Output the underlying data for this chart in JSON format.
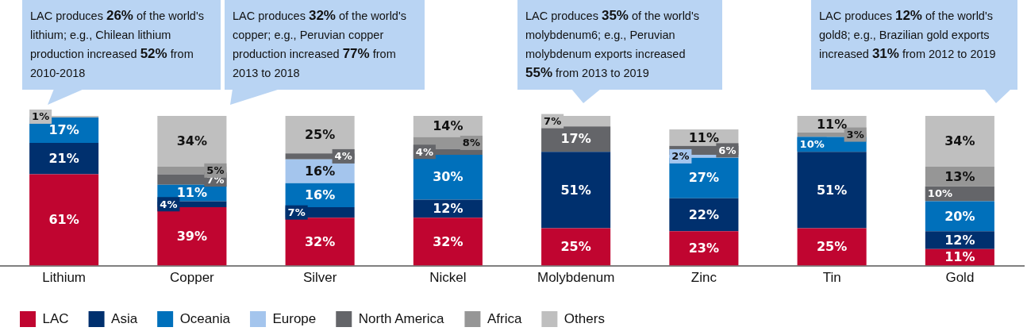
{
  "chart_data": {
    "type": "bar",
    "stacked": true,
    "legend": "bottom",
    "grid": false,
    "categories": [
      "Lithium",
      "Copper",
      "Silver",
      "Nickel",
      "Molybdenum",
      "Zinc",
      "Tin",
      "Gold"
    ],
    "series": [
      {
        "name": "LAC",
        "color": "#c00530",
        "values": [
          61,
          39,
          32,
          32,
          25,
          23,
          25,
          11
        ],
        "value_labels": [
          "61%",
          "39%",
          "32%",
          "32%",
          "25%",
          "23%",
          "25%",
          "11%"
        ]
      },
      {
        "name": "Asia",
        "color": "#00306e",
        "values": [
          21,
          4,
          7,
          12,
          51,
          22,
          51,
          12
        ],
        "value_labels": [
          "21%",
          "4%",
          "7%",
          "12%",
          "51%",
          "22%",
          "51%",
          "12%"
        ]
      },
      {
        "name": "Oceania",
        "color": "#0070bb",
        "values": [
          17,
          11,
          16,
          30,
          null,
          27,
          10,
          20
        ],
        "value_labels": [
          "17%",
          "11%",
          "16%",
          "30%",
          null,
          "27%",
          "10%",
          "20%"
        ]
      },
      {
        "name": "Europe",
        "color": "#a4c5ed",
        "values": [
          null,
          null,
          16,
          null,
          null,
          2,
          null,
          null
        ],
        "value_labels": [
          null,
          null,
          "16%",
          null,
          null,
          "2%",
          null,
          null
        ]
      },
      {
        "name": "North America",
        "color": "#646569",
        "values": [
          null,
          7,
          4,
          4,
          17,
          6,
          null,
          10
        ],
        "value_labels": [
          null,
          "7%",
          "4%",
          "4%",
          "17%",
          "6%",
          null,
          "10%"
        ]
      },
      {
        "name": "Africa",
        "color": "#969696",
        "values": [
          null,
          5,
          null,
          8,
          null,
          null,
          3,
          13
        ],
        "value_labels": [
          null,
          "5%",
          null,
          "8%",
          null,
          null,
          "3%",
          "13%"
        ]
      },
      {
        "name": "Others",
        "color": "#bfbfbf",
        "values": [
          1,
          34,
          25,
          14,
          7,
          11,
          11,
          34
        ],
        "value_labels": [
          "1%",
          "34%",
          "25%",
          "14%",
          "7%",
          "11%",
          "11%",
          "34%"
        ]
      }
    ],
    "annotations": [
      "LAC produces 26% of the world's lithium; e.g., Chilean lithium production increased 52% from 2010-2018",
      "LAC produces 32% of the world's copper; e.g., Peruvian copper production increased 77% from 2013 to 2018",
      "LAC produces 35% of the world's molybdenum6; e.g., Peruvian molybdenum exports increased 55% from 2013 to 2019",
      "LAC produces 12% of the world's gold8; e.g., Brazilian gold exports increased 31% from 2012 to 2019"
    ]
  }
}
